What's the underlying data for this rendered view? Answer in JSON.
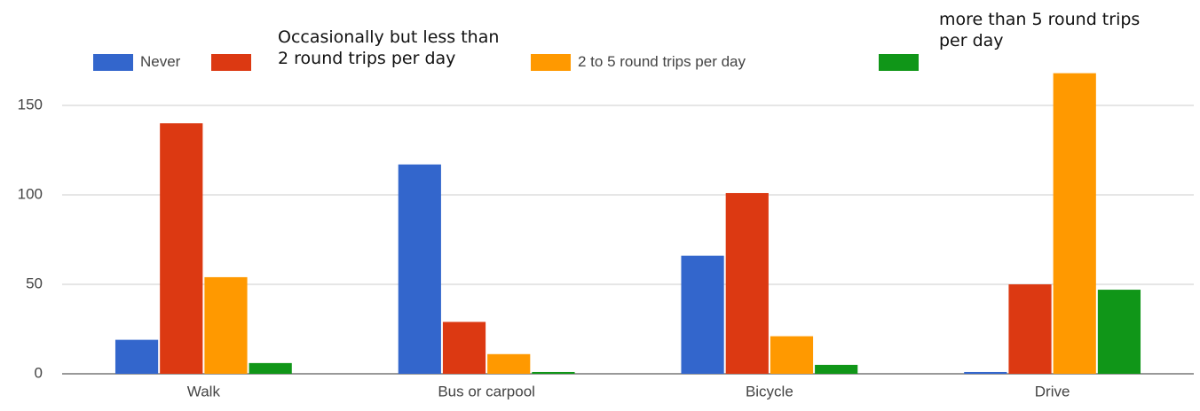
{
  "chart_data": {
    "type": "bar",
    "categories": [
      "Walk",
      "Bus or carpool",
      "Bicycle",
      "Drive"
    ],
    "series": [
      {
        "name": "Never",
        "color": "#3366cc",
        "values": [
          19,
          117,
          66,
          1
        ]
      },
      {
        "name": "Occasionally but less than 2 round trips per day",
        "color": "#dc3912",
        "values": [
          140,
          29,
          101,
          50
        ]
      },
      {
        "name": "2 to 5 round trips per day",
        "color": "#ff9900",
        "values": [
          54,
          11,
          21,
          168
        ]
      },
      {
        "name": "more than 5 round trips per day",
        "color": "#109618",
        "values": [
          6,
          1,
          5,
          47
        ]
      }
    ],
    "ylim": [
      0,
      170
    ],
    "yticks": [
      0,
      50,
      100,
      150
    ],
    "grid": true
  }
}
